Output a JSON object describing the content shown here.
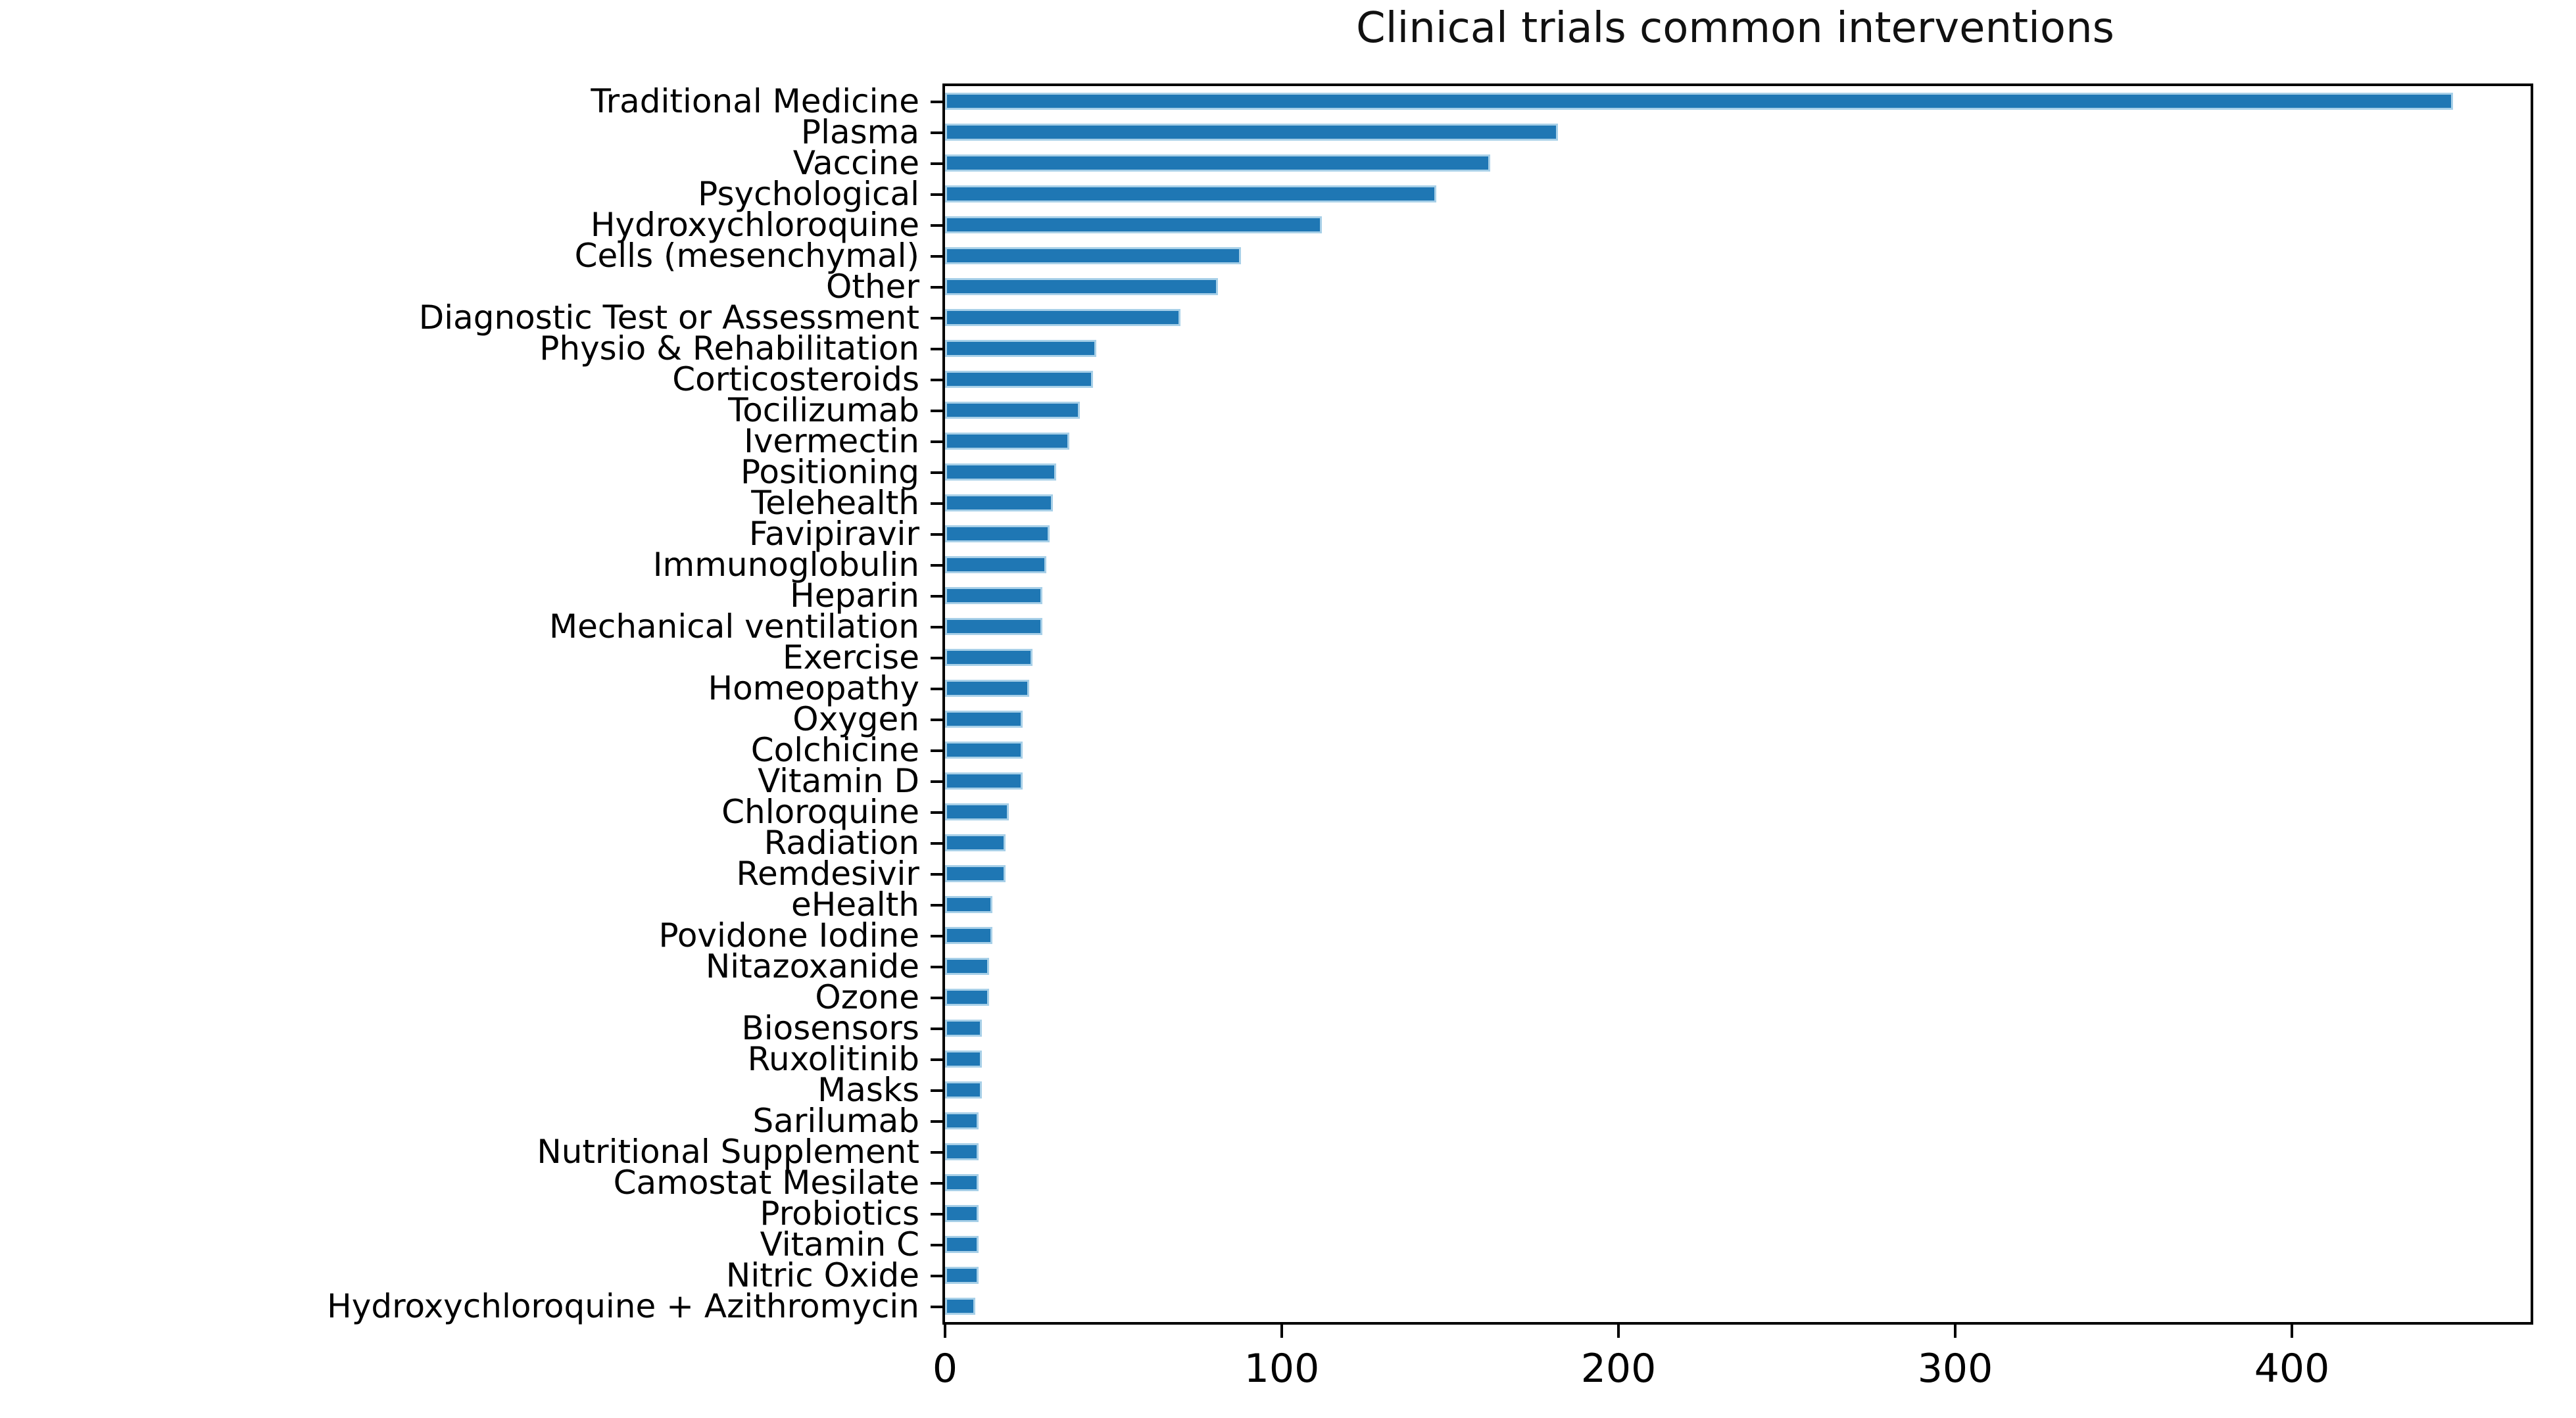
{
  "figure": {
    "background": "#ffffff",
    "frame_color": "#000000",
    "bar_color": "#1f77b4",
    "bar_edge_color": "#a8d0e8",
    "text_color": "#000000"
  },
  "chart_data": {
    "type": "bar",
    "orientation": "horizontal",
    "title": "Clinical trials common interventions",
    "xlabel": "",
    "ylabel": "",
    "xlim": [
      0,
      471
    ],
    "x_ticks": [
      0,
      100,
      200,
      300,
      400
    ],
    "x_tick_labels": [
      "0",
      "100",
      "200",
      "300",
      "400"
    ],
    "grid": false,
    "legend": false,
    "categories": [
      "Traditional Medicine",
      "Plasma",
      "Vaccine",
      "Psychological",
      "Hydroxychloroquine",
      "Cells (mesenchymal)",
      "Other",
      "Diagnostic Test or Assessment",
      "Physio & Rehabilitation",
      "Corticosteroids",
      "Tocilizumab",
      "Ivermectin",
      "Positioning",
      "Telehealth",
      "Favipiravir",
      "Immunoglobulin",
      "Heparin",
      "Mechanical ventilation",
      "Exercise",
      "Homeopathy",
      "Oxygen",
      "Colchicine",
      "Vitamin D",
      "Chloroquine",
      "Radiation",
      "Remdesivir",
      "eHealth",
      "Povidone Iodine",
      "Nitazoxanide",
      "Ozone",
      "Biosensors",
      "Ruxolitinib",
      "Masks",
      "Sarilumab",
      "Nutritional Supplement",
      "Camostat Mesilate",
      "Probiotics",
      "Vitamin C",
      "Nitric Oxide",
      "Hydroxychloroquine + Azithromycin"
    ],
    "values": [
      448,
      182,
      162,
      146,
      112,
      88,
      81,
      70,
      45,
      44,
      40,
      37,
      33,
      32,
      31,
      30,
      29,
      29,
      26,
      25,
      23,
      23,
      23,
      19,
      18,
      18,
      14,
      14,
      13,
      13,
      11,
      11,
      11,
      10,
      10,
      10,
      10,
      10,
      10,
      9
    ]
  }
}
